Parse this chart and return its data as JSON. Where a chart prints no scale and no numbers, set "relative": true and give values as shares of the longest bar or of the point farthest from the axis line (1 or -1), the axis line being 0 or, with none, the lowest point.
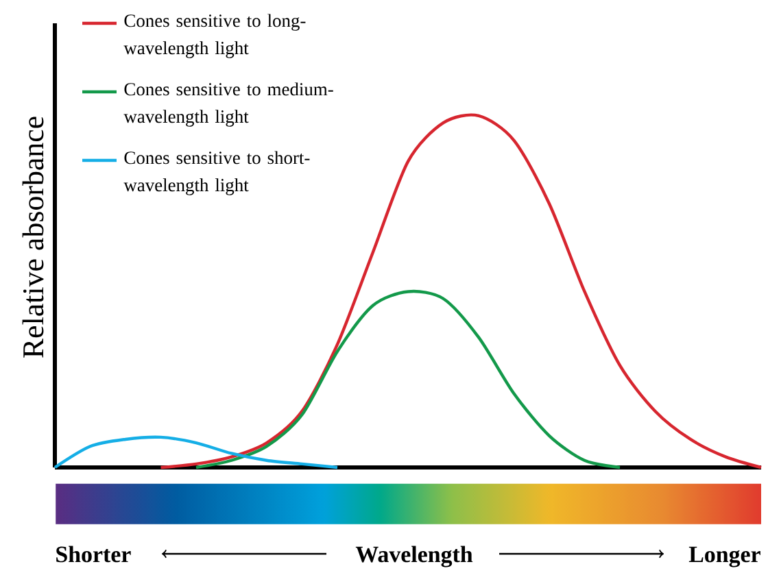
{
  "chart_data": {
    "type": "line",
    "relative": true,
    "ylabel": "Relative absorbance",
    "annotations": [
      "Shorter",
      "Wavelength",
      "Longer"
    ],
    "legend": "top left",
    "marker": "none",
    "line_style": "solid",
    "categories": [
      null,
      null,
      null,
      null,
      null,
      null,
      null,
      null,
      null,
      null,
      null,
      null,
      null,
      null,
      null,
      null,
      null,
      null,
      null,
      null,
      null
    ],
    "series": [
      {
        "name": "Cones sensitive to long-wavelength light",
        "color": "#d7262f",
        "values": [
          null,
          null,
          null,
          0,
          0.01,
          0.03,
          0.07,
          0.16,
          0.35,
          0.61,
          0.87,
          0.98,
          1.0,
          0.93,
          0.75,
          0.5,
          0.29,
          0.16,
          0.08,
          0.03,
          0
        ]
      },
      {
        "name": "Cones sensitive to medium-wavelength light",
        "color": "#13994a",
        "values": [
          null,
          null,
          null,
          null,
          0,
          0.02,
          0.06,
          0.15,
          0.33,
          0.46,
          0.5,
          0.48,
          0.37,
          0.21,
          0.09,
          0.02,
          0,
          null,
          null,
          null,
          null
        ]
      },
      {
        "name": "Cones sensitive to short-wavelength light",
        "color": "#15aee6",
        "values": [
          0,
          0.06,
          0.08,
          0.086,
          0.07,
          0.04,
          0.02,
          0.01,
          0,
          null,
          null,
          null,
          null,
          null,
          null,
          null,
          null,
          null,
          null,
          null,
          null
        ]
      }
    ]
  }
}
